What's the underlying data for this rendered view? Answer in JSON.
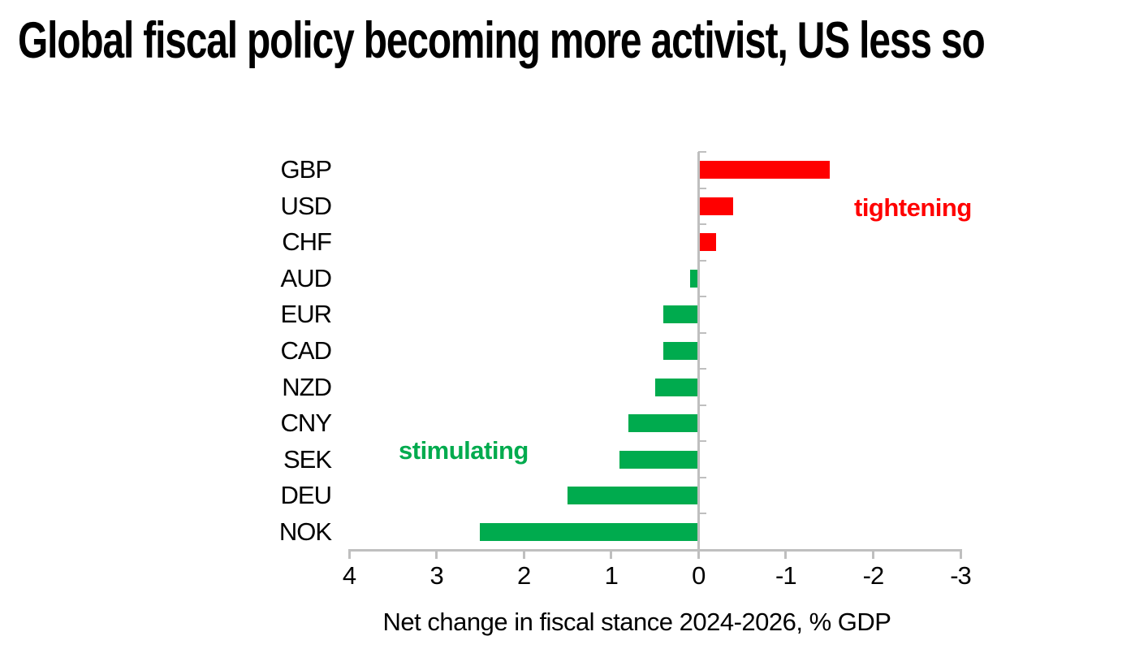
{
  "title": "Global fiscal policy becoming more activist, US less so",
  "chart_data": {
    "type": "bar",
    "orientation": "horizontal",
    "title": "Global fiscal policy becoming more activist, US less so",
    "xlabel": "Net change in fiscal stance 2024-2026, % GDP",
    "ylabel": "",
    "categories": [
      "GBP",
      "USD",
      "CHF",
      "AUD",
      "EUR",
      "CAD",
      "NZD",
      "CNY",
      "SEK",
      "DEU",
      "NOK"
    ],
    "values": [
      -1.5,
      -0.4,
      -0.2,
      0.1,
      0.4,
      0.4,
      0.5,
      0.8,
      0.9,
      1.5,
      2.5
    ],
    "x_ticks": [
      4,
      3,
      2,
      1,
      0,
      -1,
      -2,
      -3
    ],
    "x_tick_labels": [
      "4",
      "3",
      "2",
      "1",
      "0",
      "-1",
      "-2",
      "-3"
    ],
    "xlim": [
      4,
      -3
    ],
    "x_axis_reversed": true,
    "grid": false,
    "legend": "none",
    "colors": {
      "bar_positive": "#00AB4E",
      "bar_negative": "#FF0000",
      "axis": "#BFBFBF",
      "text": "#000000"
    },
    "annotations": [
      {
        "text": "tightening",
        "color": "#FF0000",
        "meaning": "negative red bars"
      },
      {
        "text": "stimulating",
        "color": "#00AB4E",
        "meaning": "positive green bars"
      }
    ]
  }
}
